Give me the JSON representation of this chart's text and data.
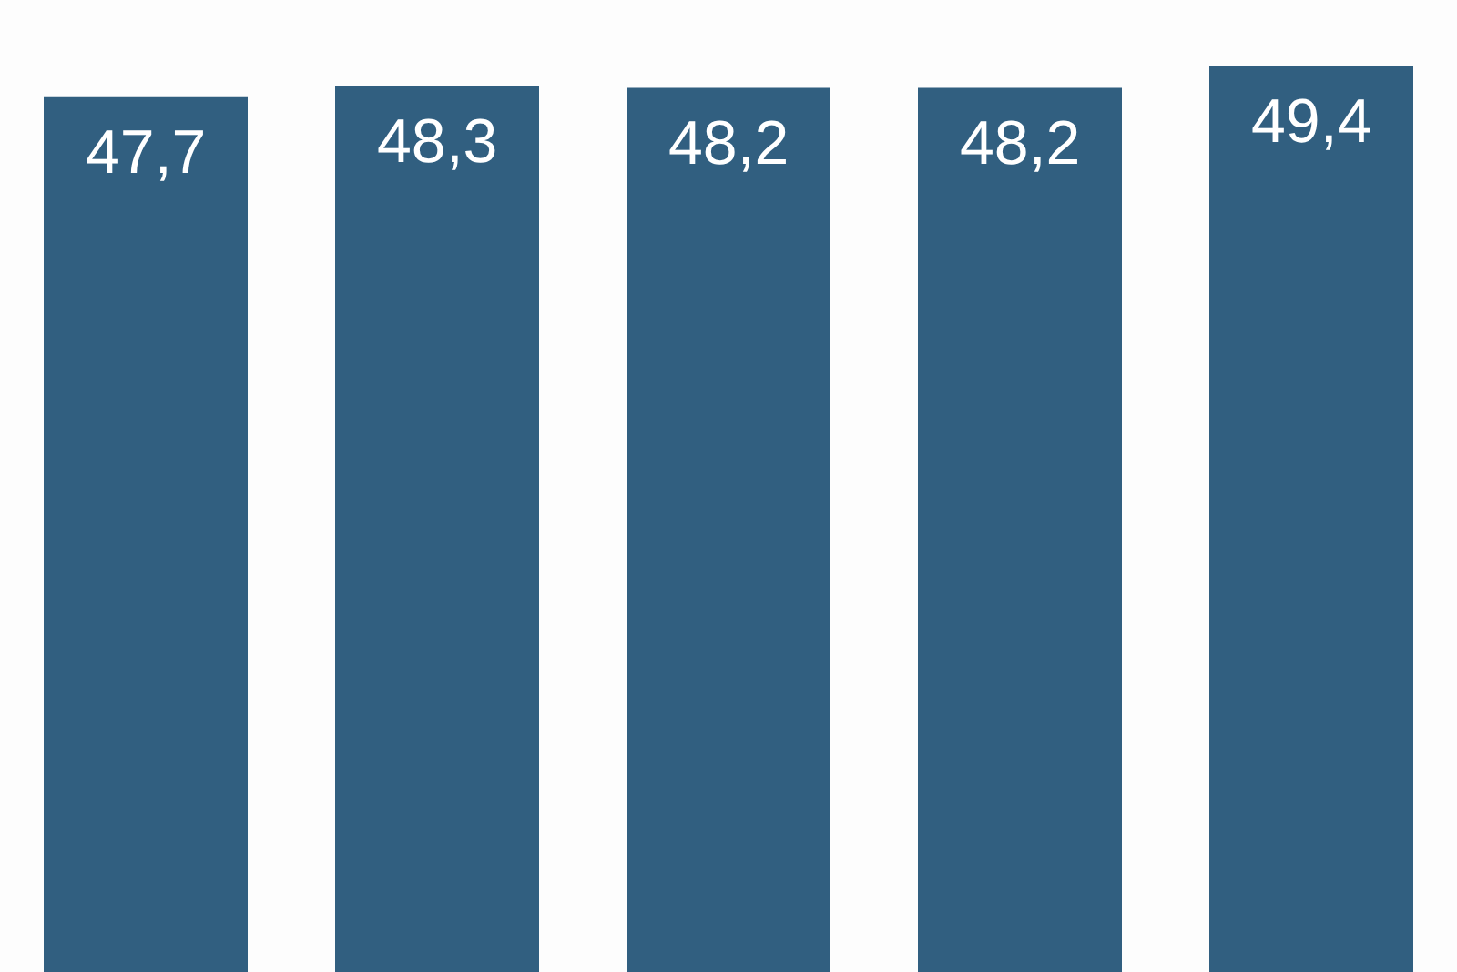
{
  "chart_data": {
    "type": "bar",
    "categories": [
      null,
      null,
      null,
      null,
      null
    ],
    "values": [
      47.7,
      48.3,
      48.2,
      48.2,
      49.4
    ],
    "value_labels": [
      "47,7",
      "48,3",
      "48,2",
      "48,2",
      "49,4"
    ],
    "color": "#315f80"
  }
}
